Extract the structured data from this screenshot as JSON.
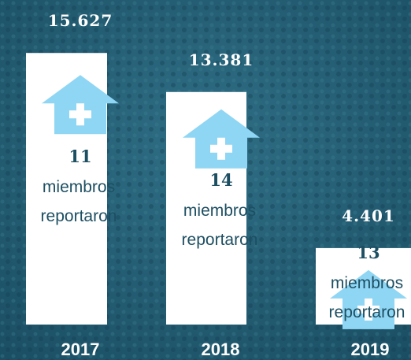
{
  "chart_data": {
    "type": "bar",
    "categories": [
      "2017",
      "2018",
      "2019"
    ],
    "values": [
      15627,
      13381,
      4401
    ],
    "value_labels": [
      "15.627",
      "13.381",
      "4.401"
    ],
    "member_counts": [
      11,
      14,
      13
    ],
    "member_text": [
      "miembros",
      "reportaron"
    ],
    "color": "#ffffff",
    "ylim": [
      0,
      16000
    ]
  }
}
